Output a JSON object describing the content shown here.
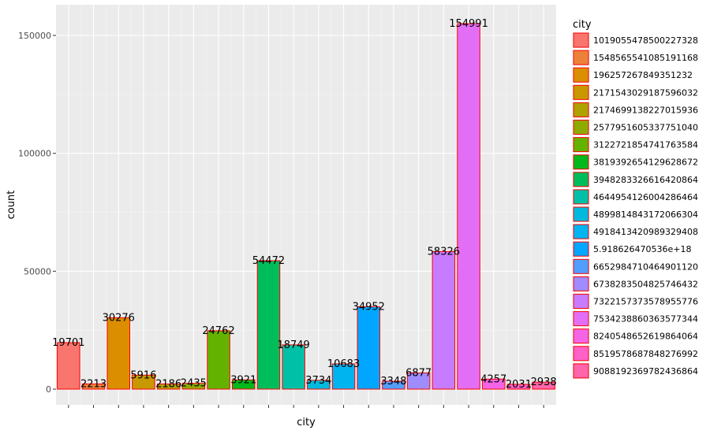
{
  "chart_data": {
    "type": "bar",
    "xlabel": "city",
    "ylabel": "count",
    "ylim": [
      0,
      160000
    ],
    "y_ticks": [
      0,
      50000,
      100000,
      150000
    ],
    "y_tick_labels": [
      "0",
      "50000",
      "100000",
      "150000"
    ],
    "grid": true,
    "legend_title": "city",
    "legend_position": "right",
    "bar_outline_color": "#ff0000",
    "panel_background": "#ebebeb",
    "categories": [
      "1019055478500227328",
      "1548565541085191168",
      "196257267849351232",
      "2171543029187596032",
      "2174699138227015936",
      "2577951605337751040",
      "3122721854741763584",
      "3819392654129628672",
      "3948283326616420864",
      "4644954126004286464",
      "4899814843172066304",
      "4918413420989329408",
      "5.918626470536e+18",
      "6652984710464901120",
      "6738283504825746432",
      "7322157373578955776",
      "7534238860363577344",
      "8240548652619864064",
      "8519578687848276992",
      "9088192369782436864"
    ],
    "values": [
      19701,
      2213,
      30276,
      5916,
      2186,
      2435,
      24762,
      3921,
      54472,
      18749,
      3734,
      10683,
      34952,
      3348,
      6877,
      58326,
      154991,
      4257,
      2031,
      2938
    ],
    "value_labels": [
      "19701",
      "2213",
      "30276",
      "5916",
      "2186",
      "2435",
      "24762",
      "3921",
      "54472",
      "18749",
      "3734",
      "10683",
      "34952",
      "3348",
      "6877",
      "58326",
      "154991",
      "4257",
      "2031",
      "2938"
    ],
    "colors": [
      "#F8766D",
      "#EC8239",
      "#DB8E00",
      "#C79800",
      "#AEA200",
      "#8FAA00",
      "#64B200",
      "#00B81B",
      "#00BD5C",
      "#00C1A7",
      "#00BADE",
      "#00B4EF",
      "#00A6FF",
      "#529EFF",
      "#9F8CFF",
      "#C77CFF",
      "#E36EF6",
      "#F365E6",
      "#FF61C9",
      "#FF65AC"
    ]
  }
}
